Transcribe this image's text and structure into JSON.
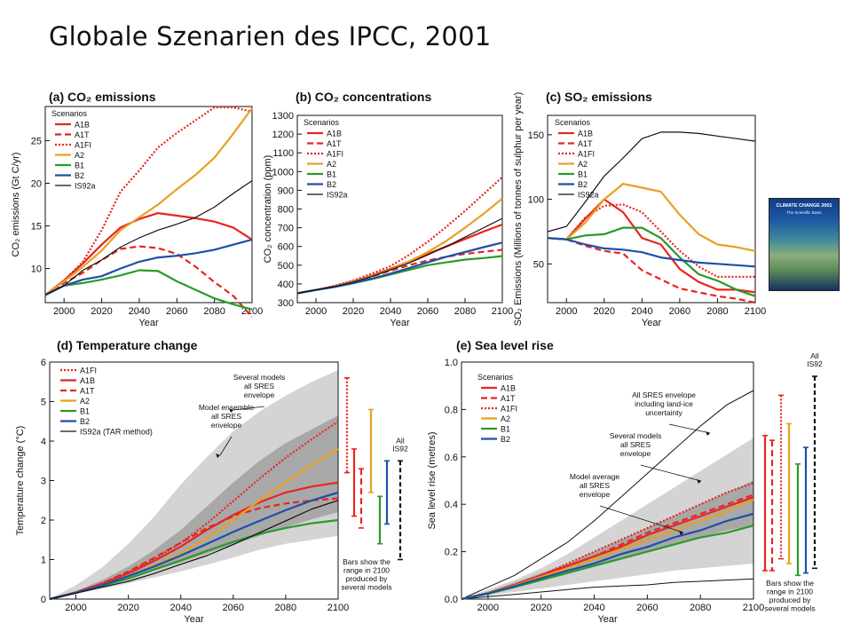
{
  "page": {
    "title": "Globale Szenarien des IPCC, 2001"
  },
  "book_cover": {
    "title": "CLIMATE CHANGE 2001",
    "subtitle": "The Scientific Basis",
    "icon": "report-cover-image"
  },
  "colors": {
    "A1B": "#e8251f",
    "A1T": "#e8251f",
    "A1FI": "#e8251f",
    "A2": "#e8a020",
    "B1": "#2a9a2a",
    "B2": "#1d4fa8",
    "IS92a": "#111111",
    "envelope_light": "#d4d4d4",
    "envelope_dark": "#a8a8a8"
  },
  "chart_data": [
    {
      "id": "a",
      "type": "line",
      "title": "(a) CO₂ emissions",
      "xlabel": "Year",
      "ylabel": "CO₂ emissions (Gt C/yr)",
      "xlim": [
        1990,
        2100
      ],
      "ylim": [
        6,
        29
      ],
      "xticks": [
        2000,
        2020,
        2040,
        2060,
        2080,
        2100
      ],
      "yticks": [
        10,
        15,
        20,
        25
      ],
      "legend_title": "Scenarios",
      "x": [
        1990,
        2000,
        2010,
        2020,
        2030,
        2040,
        2050,
        2060,
        2070,
        2080,
        2090,
        2100
      ],
      "series": [
        {
          "name": "A1B",
          "style": "solid",
          "values": [
            6.9,
            8.6,
            10.6,
            12.8,
            14.8,
            15.8,
            16.5,
            16.2,
            15.9,
            15.5,
            14.8,
            13.4
          ]
        },
        {
          "name": "A1T",
          "style": "dashed",
          "values": [
            6.9,
            8.3,
            9.5,
            11.0,
            12.3,
            12.6,
            12.4,
            11.7,
            10.2,
            8.4,
            6.8,
            4.3
          ]
        },
        {
          "name": "A1FI",
          "style": "dotted",
          "values": [
            6.9,
            8.6,
            10.8,
            14.5,
            19.0,
            21.5,
            24.2,
            25.9,
            27.4,
            28.9,
            28.9,
            28.4
          ]
        },
        {
          "name": "A2",
          "style": "solid",
          "values": [
            6.9,
            8.5,
            10.2,
            12.1,
            14.5,
            16.0,
            17.5,
            19.3,
            21.0,
            23.0,
            25.8,
            28.8
          ]
        },
        {
          "name": "B1",
          "style": "solid",
          "values": [
            6.9,
            8.0,
            8.3,
            8.7,
            9.2,
            9.8,
            9.7,
            8.5,
            7.5,
            6.5,
            5.8,
            5.2
          ]
        },
        {
          "name": "B2",
          "style": "solid",
          "values": [
            6.9,
            8.0,
            8.7,
            9.1,
            10.0,
            10.8,
            11.3,
            11.5,
            11.8,
            12.2,
            12.8,
            13.4
          ]
        },
        {
          "name": "IS92a",
          "style": "thin",
          "values": [
            6.9,
            8.0,
            9.8,
            11.0,
            12.5,
            13.6,
            14.5,
            15.2,
            16.0,
            17.2,
            18.8,
            20.3
          ]
        }
      ]
    },
    {
      "id": "b",
      "type": "line",
      "title": "(b) CO₂ concentrations",
      "xlabel": "Year",
      "ylabel": "CO₂ concentration (ppm)",
      "xlim": [
        1990,
        2100
      ],
      "ylim": [
        300,
        1300
      ],
      "xticks": [
        2000,
        2020,
        2040,
        2060,
        2080,
        2100
      ],
      "yticks": [
        300,
        400,
        500,
        600,
        700,
        800,
        900,
        1000,
        1100,
        1200,
        1300
      ],
      "legend_title": "Scenarios",
      "x": [
        1990,
        2000,
        2010,
        2020,
        2030,
        2040,
        2050,
        2060,
        2070,
        2080,
        2090,
        2100
      ],
      "series": [
        {
          "name": "A1B",
          "style": "solid",
          "values": [
            350,
            368,
            388,
            414,
            445,
            480,
            520,
            560,
            600,
            640,
            680,
            717
          ]
        },
        {
          "name": "A1T",
          "style": "dashed",
          "values": [
            350,
            368,
            386,
            410,
            440,
            470,
            500,
            525,
            545,
            560,
            572,
            582
          ]
        },
        {
          "name": "A1FI",
          "style": "dotted",
          "values": [
            350,
            368,
            390,
            418,
            455,
            495,
            555,
            625,
            705,
            790,
            880,
            970
          ]
        },
        {
          "name": "A2",
          "style": "solid",
          "values": [
            350,
            368,
            386,
            412,
            442,
            475,
            520,
            570,
            630,
            700,
            775,
            856
          ]
        },
        {
          "name": "B1",
          "style": "solid",
          "values": [
            350,
            368,
            384,
            404,
            425,
            450,
            475,
            500,
            515,
            530,
            538,
            549
          ]
        },
        {
          "name": "B2",
          "style": "solid",
          "values": [
            350,
            368,
            384,
            404,
            428,
            455,
            485,
            515,
            545,
            570,
            596,
            621
          ]
        },
        {
          "name": "IS92a",
          "style": "thin",
          "values": [
            350,
            368,
            386,
            410,
            440,
            475,
            512,
            555,
            600,
            650,
            700,
            750
          ]
        }
      ]
    },
    {
      "id": "c",
      "type": "line",
      "title": "(c) SO₂ emissions",
      "xlabel": "Year",
      "ylabel": "SO₂ Emissions (Millions of tonnes of sulphur per year)",
      "xlim": [
        1990,
        2100
      ],
      "ylim": [
        20,
        165
      ],
      "xticks": [
        2000,
        2020,
        2040,
        2060,
        2080,
        2100
      ],
      "yticks": [
        50,
        100,
        150
      ],
      "legend_title": "Scenarios",
      "x": [
        1990,
        2000,
        2010,
        2020,
        2030,
        2040,
        2050,
        2060,
        2070,
        2080,
        2090,
        2100
      ],
      "series": [
        {
          "name": "A1B",
          "style": "solid",
          "values": [
            70,
            69,
            85,
            100,
            90,
            70,
            65,
            46,
            36,
            30,
            30,
            28
          ]
        },
        {
          "name": "A1T",
          "style": "dashed",
          "values": [
            70,
            69,
            64,
            60,
            58,
            45,
            38,
            31,
            28,
            25,
            23,
            20
          ]
        },
        {
          "name": "A1FI",
          "style": "dotted",
          "values": [
            70,
            69,
            86,
            95,
            96,
            90,
            75,
            60,
            48,
            40,
            40,
            40
          ]
        },
        {
          "name": "A2",
          "style": "solid",
          "values": [
            70,
            69,
            82,
            100,
            112,
            109,
            106,
            88,
            73,
            65,
            63,
            60
          ]
        },
        {
          "name": "B1",
          "style": "solid",
          "values": [
            70,
            69,
            72,
            73,
            78,
            78,
            70,
            55,
            42,
            37,
            30,
            25
          ]
        },
        {
          "name": "B2",
          "style": "solid",
          "values": [
            70,
            69,
            65,
            62,
            61,
            59,
            55,
            53,
            51,
            50,
            49,
            48
          ]
        },
        {
          "name": "IS92a",
          "style": "thin",
          "values": [
            75,
            79,
            98,
            118,
            132,
            147,
            152,
            152,
            151,
            149,
            147,
            145
          ]
        }
      ]
    },
    {
      "id": "d",
      "type": "line",
      "title": "(d) Temperature change",
      "xlabel": "Year",
      "ylabel": "Temperature change (°C)",
      "xlim": [
        1990,
        2100
      ],
      "ylim": [
        0,
        6
      ],
      "xticks": [
        2000,
        2020,
        2040,
        2060,
        2080,
        2100
      ],
      "yticks": [
        0,
        1,
        2,
        3,
        4,
        5,
        6
      ],
      "legend_note": "IS92a (TAR method)",
      "annotations": [
        "Several models all SRES envelope",
        "Model ensemble all SRES envelope"
      ],
      "bars_note": "Bars show the range in 2100 produced by several models",
      "bars_label": "All IS92",
      "x": [
        1990,
        2000,
        2010,
        2020,
        2030,
        2040,
        2050,
        2060,
        2070,
        2080,
        2090,
        2100
      ],
      "envelope_outer": {
        "lower": [
          0,
          0.13,
          0.26,
          0.4,
          0.55,
          0.7,
          0.87,
          1.05,
          1.25,
          1.4,
          1.5,
          1.6
        ],
        "upper": [
          0,
          0.35,
          0.8,
          1.4,
          2.1,
          2.9,
          3.6,
          4.25,
          4.75,
          5.15,
          5.5,
          5.8
        ]
      },
      "envelope_inner": {
        "lower": [
          0,
          0.15,
          0.33,
          0.52,
          0.72,
          0.93,
          1.15,
          1.38,
          1.6,
          1.82,
          2.02,
          2.2
        ],
        "upper": [
          0,
          0.2,
          0.48,
          0.82,
          1.25,
          1.75,
          2.35,
          2.95,
          3.5,
          3.95,
          4.3,
          4.65
        ]
      },
      "series": [
        {
          "name": "A1FI",
          "style": "dotted",
          "values": [
            0,
            0.17,
            0.4,
            0.68,
            1.02,
            1.42,
            1.92,
            2.48,
            3.05,
            3.58,
            4.05,
            4.5
          ]
        },
        {
          "name": "A1B",
          "style": "solid",
          "values": [
            0,
            0.17,
            0.39,
            0.65,
            0.97,
            1.33,
            1.75,
            2.13,
            2.45,
            2.7,
            2.85,
            2.95
          ]
        },
        {
          "name": "A1T",
          "style": "dashed",
          "values": [
            0,
            0.17,
            0.4,
            0.7,
            1.05,
            1.43,
            1.8,
            2.1,
            2.3,
            2.42,
            2.5,
            2.55
          ]
        },
        {
          "name": "A2",
          "style": "solid",
          "values": [
            0,
            0.16,
            0.35,
            0.58,
            0.85,
            1.15,
            1.55,
            2.0,
            2.5,
            2.95,
            3.4,
            3.8
          ]
        },
        {
          "name": "B1",
          "style": "solid",
          "values": [
            0,
            0.16,
            0.33,
            0.52,
            0.75,
            0.98,
            1.22,
            1.45,
            1.65,
            1.8,
            1.92,
            2.0
          ]
        },
        {
          "name": "B2",
          "style": "solid",
          "values": [
            0,
            0.16,
            0.35,
            0.58,
            0.83,
            1.1,
            1.4,
            1.7,
            1.98,
            2.25,
            2.5,
            2.7
          ]
        },
        {
          "name": "IS92a",
          "style": "thin",
          "values": [
            0,
            0.15,
            0.3,
            0.45,
            0.65,
            0.88,
            1.1,
            1.38,
            1.68,
            1.98,
            2.28,
            2.5
          ]
        }
      ],
      "range_bars": [
        {
          "name": "A1FI",
          "style": "dotted",
          "min": 3.2,
          "max": 5.6
        },
        {
          "name": "A1B",
          "style": "solid",
          "min": 2.1,
          "max": 3.8
        },
        {
          "name": "A1T",
          "style": "dashed",
          "min": 1.8,
          "max": 3.3
        },
        {
          "name": "A2",
          "style": "solid",
          "min": 2.7,
          "max": 4.8
        },
        {
          "name": "B1",
          "style": "solid",
          "min": 1.4,
          "max": 2.6
        },
        {
          "name": "B2",
          "style": "solid",
          "min": 1.9,
          "max": 3.5
        },
        {
          "name": "IS92",
          "style": "dashed-black",
          "min": 1.0,
          "max": 3.5
        }
      ]
    },
    {
      "id": "e",
      "type": "line",
      "title": "(e) Sea level rise",
      "xlabel": "Year",
      "ylabel": "Sea level rise (metres)",
      "xlim": [
        1990,
        2100
      ],
      "ylim": [
        0,
        1.0
      ],
      "xticks": [
        2000,
        2020,
        2040,
        2060,
        2080,
        2100
      ],
      "yticks": [
        0.0,
        0.2,
        0.4,
        0.6,
        0.8,
        1.0
      ],
      "legend_title": "Scenarios",
      "annotations": [
        "All SRES envelope including land-ice uncertainty",
        "Several models all SRES envelope",
        "Model average all SRES envelope"
      ],
      "bars_note": "Bars show the range in 2100 produced by several models",
      "bars_label": "All IS92",
      "x": [
        1990,
        2000,
        2010,
        2020,
        2030,
        2040,
        2050,
        2060,
        2070,
        2080,
        2090,
        2100
      ],
      "envelope_outer": {
        "lower": [
          0,
          0.015,
          0.03,
          0.045,
          0.06,
          0.075,
          0.09,
          0.105,
          0.12,
          0.13,
          0.14,
          0.15
        ],
        "upper": [
          0,
          0.04,
          0.08,
          0.13,
          0.19,
          0.26,
          0.33,
          0.4,
          0.47,
          0.54,
          0.61,
          0.68
        ]
      },
      "envelope_inner": {
        "lower": [
          0,
          0.02,
          0.05,
          0.08,
          0.11,
          0.14,
          0.17,
          0.2,
          0.23,
          0.26,
          0.29,
          0.31
        ],
        "upper": [
          0,
          0.03,
          0.07,
          0.11,
          0.15,
          0.2,
          0.25,
          0.3,
          0.35,
          0.4,
          0.45,
          0.5
        ]
      },
      "outline_upper": [
        0,
        0.05,
        0.1,
        0.17,
        0.24,
        0.33,
        0.43,
        0.53,
        0.63,
        0.73,
        0.82,
        0.88
      ],
      "outline_lower": [
        0,
        0.01,
        0.02,
        0.03,
        0.04,
        0.05,
        0.055,
        0.06,
        0.07,
        0.075,
        0.08,
        0.085
      ],
      "series": [
        {
          "name": "A1B",
          "style": "solid",
          "values": [
            0,
            0.025,
            0.06,
            0.1,
            0.14,
            0.18,
            0.22,
            0.27,
            0.31,
            0.35,
            0.39,
            0.43
          ]
        },
        {
          "name": "A1T",
          "style": "dashed",
          "values": [
            0,
            0.025,
            0.06,
            0.1,
            0.14,
            0.18,
            0.23,
            0.28,
            0.32,
            0.36,
            0.4,
            0.44
          ]
        },
        {
          "name": "A1FI",
          "style": "dotted",
          "values": [
            0,
            0.025,
            0.06,
            0.1,
            0.15,
            0.2,
            0.25,
            0.3,
            0.35,
            0.4,
            0.45,
            0.49
          ]
        },
        {
          "name": "A2",
          "style": "solid",
          "values": [
            0,
            0.024,
            0.056,
            0.094,
            0.13,
            0.17,
            0.21,
            0.25,
            0.29,
            0.33,
            0.37,
            0.42
          ]
        },
        {
          "name": "B1",
          "style": "solid",
          "values": [
            0,
            0.022,
            0.05,
            0.08,
            0.11,
            0.14,
            0.17,
            0.2,
            0.23,
            0.26,
            0.28,
            0.31
          ]
        },
        {
          "name": "B2",
          "style": "solid",
          "values": [
            0,
            0.024,
            0.054,
            0.088,
            0.12,
            0.15,
            0.19,
            0.22,
            0.26,
            0.29,
            0.33,
            0.36
          ]
        }
      ],
      "range_bars": [
        {
          "name": "A1B",
          "style": "solid",
          "min": 0.12,
          "max": 0.69
        },
        {
          "name": "A1T",
          "style": "dashed",
          "min": 0.12,
          "max": 0.67
        },
        {
          "name": "A1FI",
          "style": "dotted",
          "min": 0.17,
          "max": 0.86
        },
        {
          "name": "A2",
          "style": "solid",
          "min": 0.15,
          "max": 0.74
        },
        {
          "name": "B1",
          "style": "solid",
          "min": 0.1,
          "max": 0.57
        },
        {
          "name": "B2",
          "style": "solid",
          "min": 0.11,
          "max": 0.64
        },
        {
          "name": "IS92",
          "style": "dashed-black",
          "min": 0.13,
          "max": 0.94
        }
      ]
    }
  ]
}
